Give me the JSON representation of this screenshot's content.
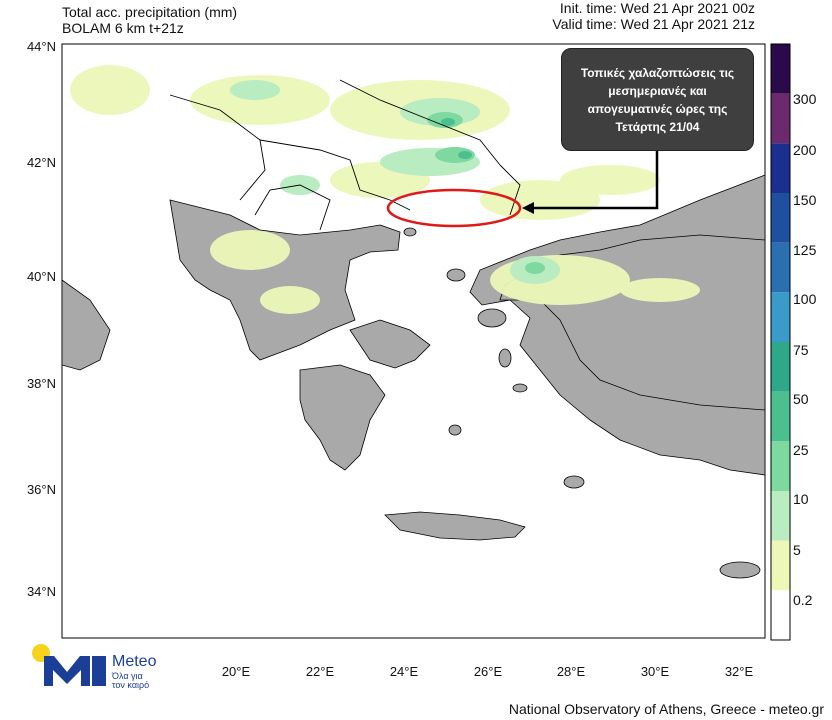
{
  "header": {
    "title": "Total acc. precipitation (mm)",
    "model": "BOLAM 6 km t+21z",
    "init_time": "Init. time: Wed 21 Apr 2021 00z",
    "valid_time": "Valid time: Wed 21 Apr 2021 21z"
  },
  "axes": {
    "lat_labels": [
      "44°N",
      "42°N",
      "40°N",
      "38°N",
      "36°N",
      "34°N"
    ],
    "lon_labels": [
      "20°E",
      "22°E",
      "24°E",
      "26°E",
      "28°E",
      "30°E",
      "32°E"
    ]
  },
  "colorbar": {
    "levels": [
      "300",
      "200",
      "150",
      "125",
      "100",
      "75",
      "50",
      "25",
      "10",
      "5",
      "0.2"
    ],
    "colors": [
      "#2a0a4a",
      "#6b2a6b",
      "#1b2f8f",
      "#1f4f9f",
      "#2a6fb0",
      "#3a9bc8",
      "#2fa88a",
      "#4cbf8f",
      "#7ed9a0",
      "#b9ecc0",
      "#ecf7b8",
      "#ffffff"
    ]
  },
  "annotation": {
    "text": "Τοπικές χαλαζοπτώσεις τις μεσημεριανές και απογευματινές ώρες της Τετάρτης 21/04",
    "highlight_color": "#e01818"
  },
  "branding": {
    "logo_name": "Meteo",
    "logo_tagline_line1": "Όλα για",
    "logo_tagline_line2": "τον καιρό",
    "logo_colors": {
      "dot": "#f5d31a",
      "mark": "#1b3f96"
    },
    "footer": "National Observatory of Athens, Greece - meteo.gr"
  },
  "map_colors": {
    "land": "#a9a9a9",
    "sea": "#ffffff",
    "border": "#000000"
  }
}
